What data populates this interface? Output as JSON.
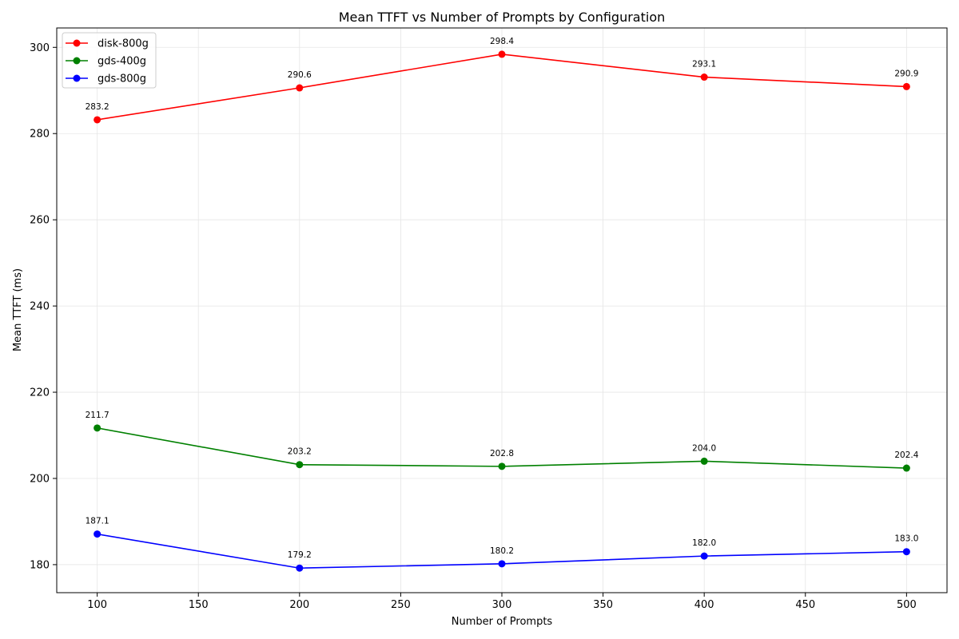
{
  "chart_data": {
    "type": "line",
    "title": "Mean TTFT vs Number of Prompts by Configuration",
    "xlabel": "Number of Prompts",
    "ylabel": "Mean TTFT (ms)",
    "x": [
      100,
      200,
      300,
      400,
      500
    ],
    "xlim": [
      80,
      520
    ],
    "ylim": [
      173.5,
      304.5
    ],
    "xticks": [
      100,
      150,
      200,
      250,
      300,
      350,
      400,
      450,
      500
    ],
    "yticks": [
      180,
      200,
      220,
      240,
      260,
      280,
      300
    ],
    "grid": true,
    "legend_position": "top-left",
    "series": [
      {
        "name": "disk-800g",
        "color": "#ff0000",
        "values": [
          283.2,
          290.6,
          298.4,
          293.1,
          290.9
        ],
        "labels": [
          "283.2",
          "290.6",
          "298.4",
          "293.1",
          "290.9"
        ]
      },
      {
        "name": "gds-400g",
        "color": "#008000",
        "values": [
          211.7,
          203.2,
          202.8,
          204.0,
          202.4
        ],
        "labels": [
          "211.7",
          "203.2",
          "202.8",
          "204.0",
          "202.4"
        ]
      },
      {
        "name": "gds-800g",
        "color": "#0000ff",
        "values": [
          187.1,
          179.2,
          180.2,
          182.0,
          183.0
        ],
        "labels": [
          "187.1",
          "179.2",
          "180.2",
          "182.0",
          "183.0"
        ]
      }
    ]
  }
}
